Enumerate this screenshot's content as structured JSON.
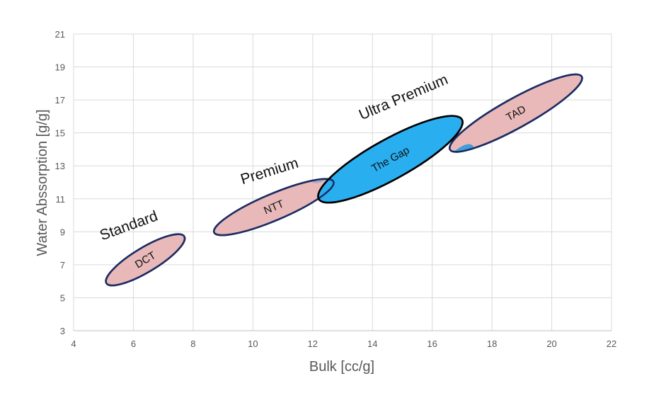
{
  "chart_data": {
    "type": "scatter",
    "title": "",
    "xlabel": "Bulk [cc/g]",
    "ylabel": "Water Abssorption [g/g]",
    "xlim": [
      4,
      22
    ],
    "ylim": [
      3,
      21
    ],
    "x_ticks": [
      4,
      6,
      8,
      10,
      12,
      14,
      16,
      18,
      20,
      22
    ],
    "y_ticks": [
      3,
      5,
      7,
      9,
      11,
      13,
      15,
      17,
      19,
      21
    ],
    "grid": true,
    "regions": [
      {
        "label": "DCT",
        "category": "Standard",
        "cx": 6.4,
        "cy": 7.3,
        "rx": 1.52,
        "ry": 0.74,
        "angle": 31,
        "fill": "#e9b9b9",
        "stroke": "#1c2c63"
      },
      {
        "label": "NTT",
        "category": "Premium",
        "cx": 10.7,
        "cy": 10.5,
        "rx": 2.17,
        "ry": 0.8,
        "angle": 23,
        "fill": "#e9b9b9",
        "stroke": "#1c2c63"
      },
      {
        "label": "TAD",
        "category": "",
        "cx": 18.8,
        "cy": 16.2,
        "rx": 2.52,
        "ry": 0.89,
        "angle": 29,
        "fill": "#e9b9b9",
        "stroke": "#1c2c63"
      },
      {
        "label": "The Gap",
        "category": "Ultra Premium",
        "cx": 14.6,
        "cy": 13.4,
        "rx": 2.74,
        "ry": 1.21,
        "angle": 29,
        "fill": "#29aef0",
        "stroke": "#000000"
      }
    ],
    "category_labels": [
      {
        "text": "Standard",
        "x": 5.9,
        "y": 9.1,
        "angle": -20
      },
      {
        "text": "Premium",
        "x": 10.6,
        "y": 12.4,
        "angle": -17
      },
      {
        "text": "Ultra Premium",
        "x": 15.1,
        "y": 16.9,
        "angle": -23
      }
    ]
  },
  "colors": {
    "grid": "#d9d9d9",
    "axis_text": "#595959",
    "overlap": "#aaa6c9",
    "label_text": "#111111"
  }
}
